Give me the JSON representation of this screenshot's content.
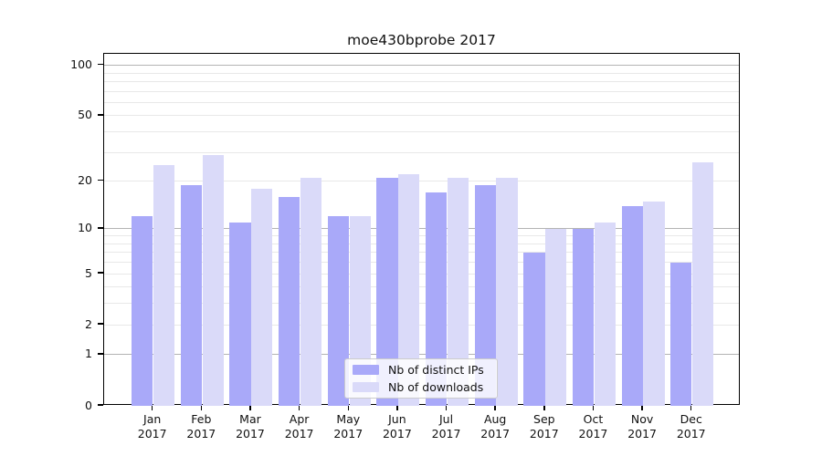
{
  "chart_data": {
    "type": "bar",
    "title": "moe430bprobe 2017",
    "months": [
      "Jan",
      "Feb",
      "Mar",
      "Apr",
      "May",
      "Jun",
      "Jul",
      "Aug",
      "Sep",
      "Oct",
      "Nov",
      "Dec"
    ],
    "year_label": "2017",
    "series": [
      {
        "name": "Nb of distinct IPs",
        "color": "#a9a9f9",
        "values": [
          12,
          19,
          11,
          16,
          12,
          21,
          17,
          19,
          7,
          10,
          14,
          6
        ]
      },
      {
        "name": "Nb of downloads",
        "color": "#dadaf9",
        "values": [
          25,
          29,
          18,
          21,
          12,
          22,
          21,
          21,
          10,
          11,
          15,
          26
        ]
      }
    ],
    "yscale": "log1p",
    "ylim": [
      0,
      117
    ],
    "y_ticks": [
      0,
      1,
      2,
      5,
      10,
      20,
      50,
      100
    ],
    "grid_major": [
      1,
      10,
      100
    ],
    "grid_minor": [
      2,
      3,
      4,
      5,
      6,
      7,
      8,
      9,
      20,
      30,
      40,
      50,
      60,
      70,
      80,
      90
    ],
    "legend_position": "lower center",
    "colors": {
      "grid_major": "#b3b3b3",
      "grid_minor": "#e8e8e8",
      "axis": "#000000",
      "background": "#ffffff"
    }
  }
}
